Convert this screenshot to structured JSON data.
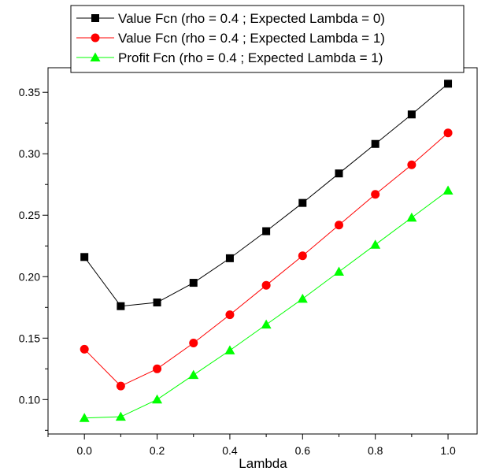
{
  "chart_data": {
    "type": "line",
    "title": "",
    "xlabel": "Lambda",
    "ylabel": "",
    "xlim": [
      -0.1,
      1.08
    ],
    "ylim": [
      0.072,
      0.37
    ],
    "x_ticks": [
      0.0,
      0.2,
      0.4,
      0.6,
      0.8,
      1.0
    ],
    "x_tick_labels": [
      "0.0",
      "0.2",
      "0.4",
      "0.6",
      "0.8",
      "1.0"
    ],
    "y_ticks": [
      0.1,
      0.15,
      0.2,
      0.25,
      0.3,
      0.35
    ],
    "y_tick_labels": [
      "0.10",
      "0.15",
      "0.20",
      "0.25",
      "0.30",
      "0.35"
    ],
    "grid": false,
    "legend_position": "top-right",
    "x": [
      0.0,
      0.1,
      0.2,
      0.3,
      0.4,
      0.5,
      0.6,
      0.7,
      0.8,
      0.9,
      1.0
    ],
    "series": [
      {
        "name": "Value Fcn (rho = 0.4 ; Expected Lambda = 0)",
        "color": "#000000",
        "marker": "square",
        "values": [
          0.216,
          0.176,
          0.179,
          0.195,
          0.215,
          0.237,
          0.26,
          0.284,
          0.308,
          0.332,
          0.357
        ]
      },
      {
        "name": "Value Fcn (rho = 0.4 ; Expected Lambda = 1)",
        "color": "#ff0000",
        "marker": "circle",
        "values": [
          0.141,
          0.111,
          0.125,
          0.146,
          0.169,
          0.193,
          0.217,
          0.242,
          0.267,
          0.291,
          0.317
        ]
      },
      {
        "name": "Profit Fcn (rho = 0.4 ; Expected Lambda = 1)",
        "color": "#00ff00",
        "marker": "triangle",
        "values": [
          0.085,
          0.086,
          0.1,
          0.12,
          0.14,
          0.161,
          0.182,
          0.204,
          0.226,
          0.248,
          0.27
        ]
      }
    ]
  }
}
